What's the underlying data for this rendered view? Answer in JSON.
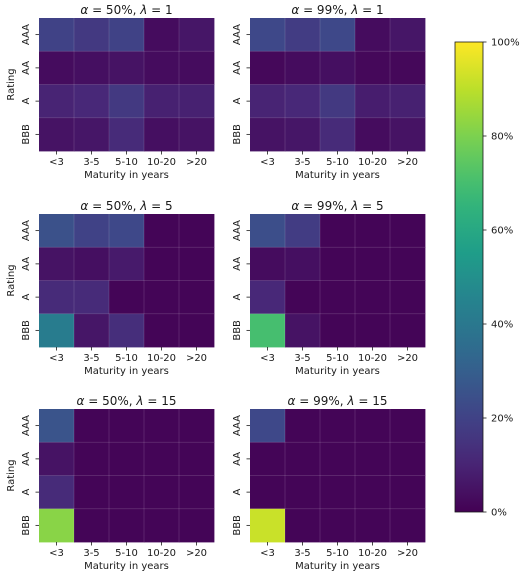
{
  "chart_data": {
    "type": "heatmap",
    "xlabel": "Maturity in years",
    "ylabel": "Rating",
    "x_categories": [
      "<3",
      "3-5",
      "5-10",
      "10-20",
      ">20"
    ],
    "y_categories": [
      "AAA",
      "AA",
      "A",
      "BBB"
    ],
    "value_range": [
      0,
      100
    ],
    "value_unit": "%",
    "colormap": "viridis",
    "panels": [
      {
        "alpha": "50%",
        "lambda": "1",
        "values": [
          [
            20,
            17,
            20,
            3,
            6
          ],
          [
            3,
            4,
            5,
            3,
            3
          ],
          [
            10,
            11,
            17,
            9,
            9
          ],
          [
            5,
            6,
            12,
            4,
            5
          ]
        ]
      },
      {
        "alpha": "99%",
        "lambda": "1",
        "values": [
          [
            22,
            18,
            22,
            3,
            6
          ],
          [
            2,
            3,
            4,
            2,
            2
          ],
          [
            10,
            11,
            17,
            8,
            9
          ],
          [
            5,
            6,
            12,
            3,
            5
          ]
        ]
      },
      {
        "alpha": "50%",
        "lambda": "5",
        "values": [
          [
            25,
            20,
            22,
            1,
            1
          ],
          [
            5,
            4,
            7,
            1,
            1
          ],
          [
            12,
            12,
            1,
            1,
            1
          ],
          [
            42,
            6,
            13,
            1,
            1
          ]
        ]
      },
      {
        "alpha": "99%",
        "lambda": "5",
        "values": [
          [
            24,
            18,
            1,
            1,
            1
          ],
          [
            3,
            4,
            1,
            1,
            1
          ],
          [
            11,
            1,
            1,
            1,
            1
          ],
          [
            70,
            5,
            1,
            1,
            1
          ]
        ]
      },
      {
        "alpha": "50%",
        "lambda": "15",
        "values": [
          [
            26,
            1,
            1,
            1,
            1
          ],
          [
            5,
            1,
            1,
            1,
            1
          ],
          [
            12,
            1,
            1,
            1,
            1
          ],
          [
            82,
            1,
            1,
            1,
            1
          ]
        ]
      },
      {
        "alpha": "99%",
        "lambda": "15",
        "values": [
          [
            22,
            1,
            1,
            1,
            1
          ],
          [
            1,
            1,
            1,
            1,
            1
          ],
          [
            1,
            1,
            1,
            1,
            1
          ],
          [
            92,
            1,
            1,
            1,
            1
          ]
        ]
      }
    ],
    "colorbar_ticks": [
      "0%",
      "20%",
      "40%",
      "60%",
      "80%",
      "100%"
    ]
  }
}
